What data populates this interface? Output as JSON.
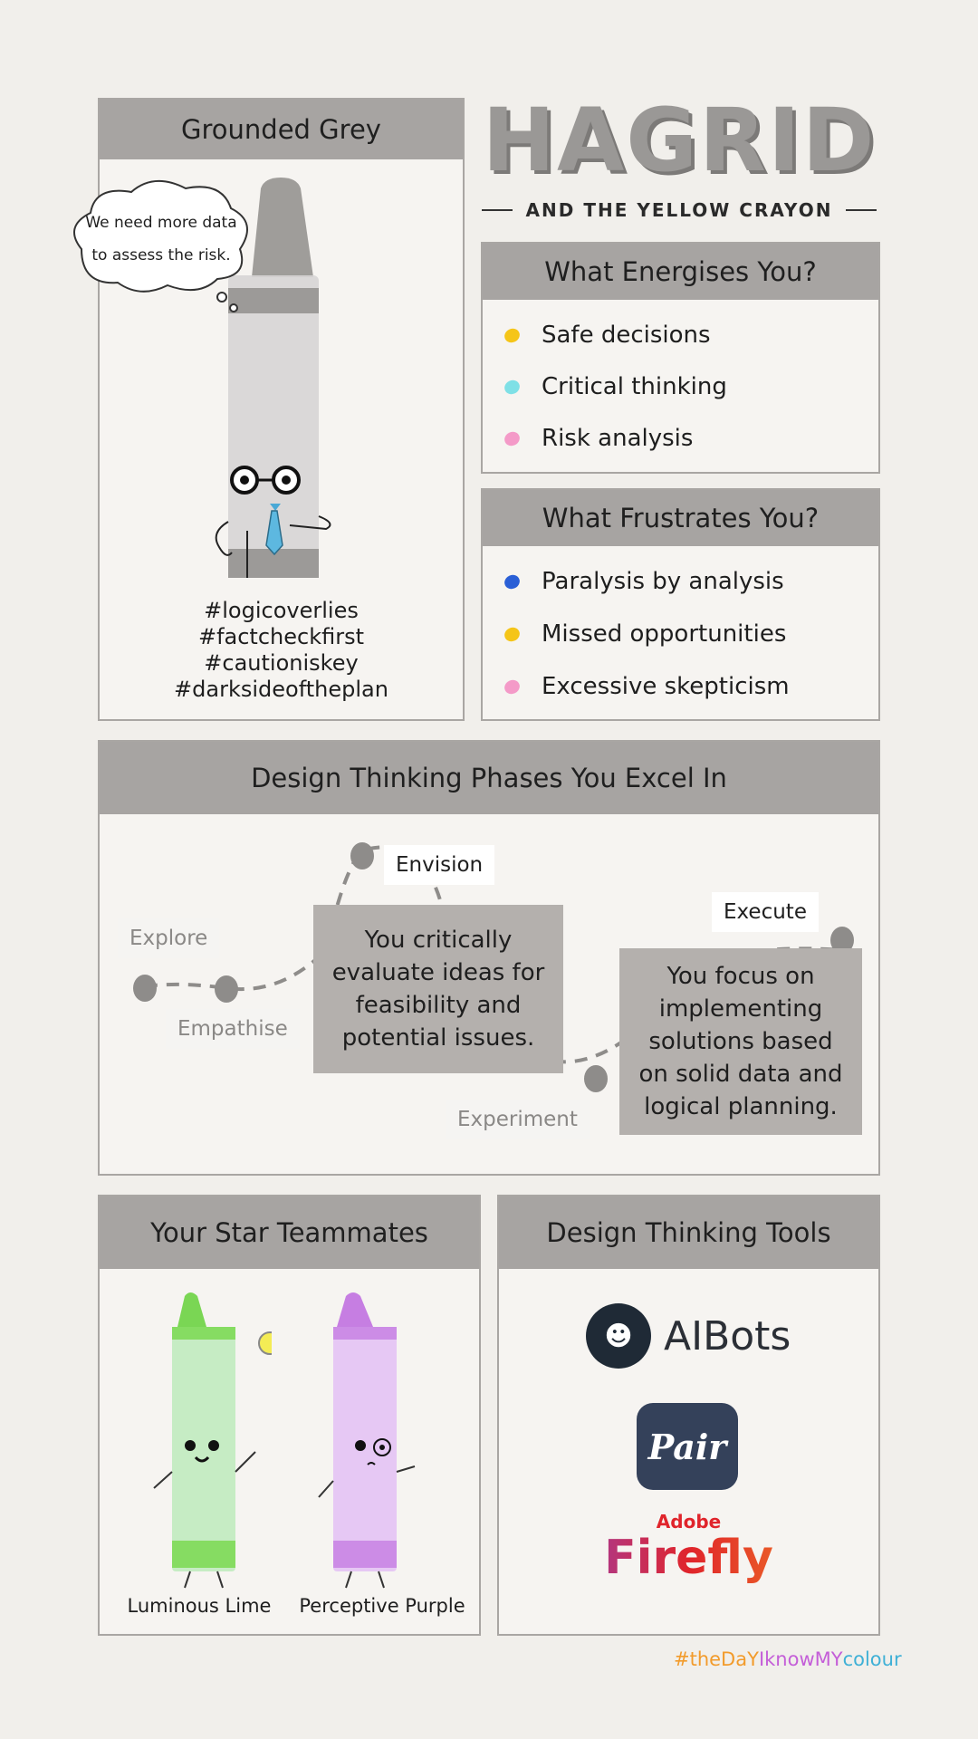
{
  "title": {
    "main": "HAGRID",
    "subtitle": "AND THE YELLOW CRAYON"
  },
  "profile": {
    "heading": "Grounded Grey",
    "speech": "We need more data to assess the risk.",
    "hashtags": [
      "#logicoverlies",
      "#factcheckfirst",
      "#cautioniskey",
      "#darksideoftheplan"
    ]
  },
  "energises": {
    "heading": "What Energises You?",
    "items": [
      {
        "label": "Safe decisions",
        "color": "#f5c518"
      },
      {
        "label": "Critical thinking",
        "color": "#7fe0e6"
      },
      {
        "label": "Risk analysis",
        "color": "#f49ac8"
      }
    ]
  },
  "frustrates": {
    "heading": "What Frustrates You?",
    "items": [
      {
        "label": "Paralysis by analysis",
        "color": "#2a5fd6"
      },
      {
        "label": "Missed opportunities",
        "color": "#f5c518"
      },
      {
        "label": "Excessive skepticism",
        "color": "#f49ac8"
      }
    ]
  },
  "phases": {
    "heading": "Design Thinking Phases You Excel In",
    "labels": {
      "explore": "Explore",
      "empathise": "Empathise",
      "envision": "Envision",
      "experiment": "Experiment",
      "execute": "Execute"
    },
    "active": [
      "Envision",
      "Execute"
    ],
    "envision_text": "You critically evaluate ideas for feasibility and potential issues.",
    "execute_text": "You focus on implementing solutions based on solid data and logical planning."
  },
  "teammates": {
    "heading": "Your Star Teammates",
    "members": [
      {
        "name": "Luminous Lime",
        "color": "#8ee06a"
      },
      {
        "name": "Perceptive Purple",
        "color": "#c77be0"
      }
    ]
  },
  "tools": {
    "heading": "Design Thinking Tools",
    "items": [
      "AIBots",
      "Pair",
      "Adobe",
      "Firefly"
    ]
  },
  "footer": {
    "hashtag_parts": [
      "#theDaY",
      "IknowMY",
      "colour"
    ]
  },
  "colors": {
    "panel_header": "#a7a4a2",
    "panel_border": "#a9a6a3",
    "accent_grey": "#8e8c8a"
  }
}
